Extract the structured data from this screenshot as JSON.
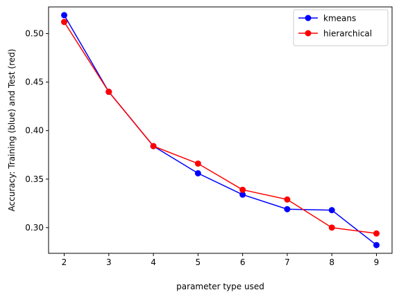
{
  "chart_data": {
    "type": "line",
    "title": "",
    "xlabel": "parameter type used",
    "ylabel": "Accuracy: Training (blue) and Test (red)",
    "xlim": [
      1.65,
      9.35
    ],
    "ylim": [
      0.2735,
      0.5275
    ],
    "x_ticks": [
      2,
      3,
      4,
      5,
      6,
      7,
      8,
      9
    ],
    "y_ticks": [
      0.3,
      0.35,
      0.4,
      0.45,
      0.5
    ],
    "y_tick_labels": [
      "0.30",
      "0.35",
      "0.40",
      "0.45",
      "0.50"
    ],
    "grid": false,
    "legend_position": "top-right",
    "x": [
      2,
      3,
      4,
      5,
      6,
      7,
      8,
      9
    ],
    "series": [
      {
        "name": "kmeans",
        "color": "#0000ff",
        "values": [
          0.519,
          0.44,
          0.384,
          0.356,
          0.334,
          0.319,
          0.318,
          0.282
        ]
      },
      {
        "name": "hierarchical",
        "color": "#ff0000",
        "values": [
          0.512,
          0.44,
          0.384,
          0.366,
          0.339,
          0.329,
          0.3,
          0.294
        ]
      }
    ]
  }
}
